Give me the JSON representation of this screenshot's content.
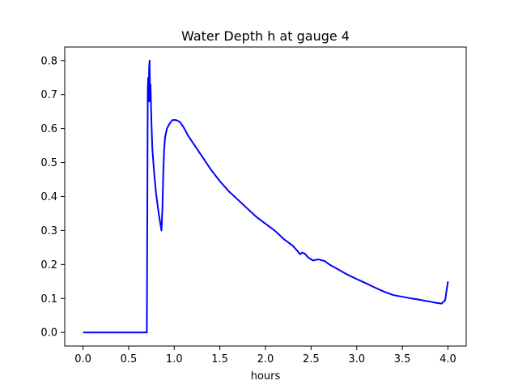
{
  "chart_data": {
    "type": "line",
    "title": "Water Depth h at gauge 4",
    "xlabel": "hours",
    "ylabel": "",
    "xlim": [
      -0.2,
      4.2
    ],
    "ylim": [
      -0.04,
      0.84
    ],
    "xticks": [
      0.0,
      0.5,
      1.0,
      1.5,
      2.0,
      2.5,
      3.0,
      3.5,
      4.0
    ],
    "xtick_labels": [
      "0.0",
      "0.5",
      "1.0",
      "1.5",
      "2.0",
      "2.5",
      "3.0",
      "3.5",
      "4.0"
    ],
    "yticks": [
      0.0,
      0.1,
      0.2,
      0.3,
      0.4,
      0.5,
      0.6,
      0.7,
      0.8
    ],
    "ytick_labels": [
      "0.0",
      "0.1",
      "0.2",
      "0.3",
      "0.4",
      "0.5",
      "0.6",
      "0.7",
      "0.8"
    ],
    "grid": false,
    "series": [
      {
        "color": "#0000ff",
        "x": [
          0.0,
          0.1,
          0.2,
          0.3,
          0.4,
          0.5,
          0.6,
          0.69,
          0.7,
          0.71,
          0.715,
          0.72,
          0.725,
          0.73,
          0.735,
          0.74,
          0.75,
          0.76,
          0.78,
          0.8,
          0.83,
          0.86,
          0.87,
          0.88,
          0.89,
          0.9,
          0.92,
          0.95,
          0.98,
          1.02,
          1.06,
          1.1,
          1.15,
          1.2,
          1.3,
          1.4,
          1.5,
          1.6,
          1.7,
          1.8,
          1.9,
          2.0,
          2.1,
          2.2,
          2.3,
          2.35,
          2.38,
          2.4,
          2.43,
          2.47,
          2.52,
          2.58,
          2.65,
          2.7,
          2.8,
          2.9,
          3.0,
          3.1,
          3.2,
          3.3,
          3.4,
          3.5,
          3.6,
          3.7,
          3.75,
          3.8,
          3.85,
          3.9,
          3.93,
          3.95,
          3.97,
          3.98,
          4.0
        ],
        "y": [
          0.0,
          0.0,
          0.0,
          0.0,
          0.0,
          0.0,
          0.0,
          0.0,
          0.0,
          0.72,
          0.75,
          0.68,
          0.78,
          0.8,
          0.68,
          0.73,
          0.62,
          0.54,
          0.47,
          0.41,
          0.35,
          0.3,
          0.36,
          0.47,
          0.54,
          0.575,
          0.6,
          0.615,
          0.625,
          0.625,
          0.62,
          0.605,
          0.58,
          0.56,
          0.52,
          0.48,
          0.445,
          0.415,
          0.39,
          0.365,
          0.34,
          0.32,
          0.3,
          0.275,
          0.255,
          0.24,
          0.23,
          0.235,
          0.232,
          0.22,
          0.212,
          0.215,
          0.21,
          0.2,
          0.185,
          0.17,
          0.157,
          0.145,
          0.132,
          0.12,
          0.11,
          0.105,
          0.1,
          0.096,
          0.093,
          0.091,
          0.088,
          0.086,
          0.085,
          0.09,
          0.095,
          0.115,
          0.15
        ]
      }
    ]
  }
}
